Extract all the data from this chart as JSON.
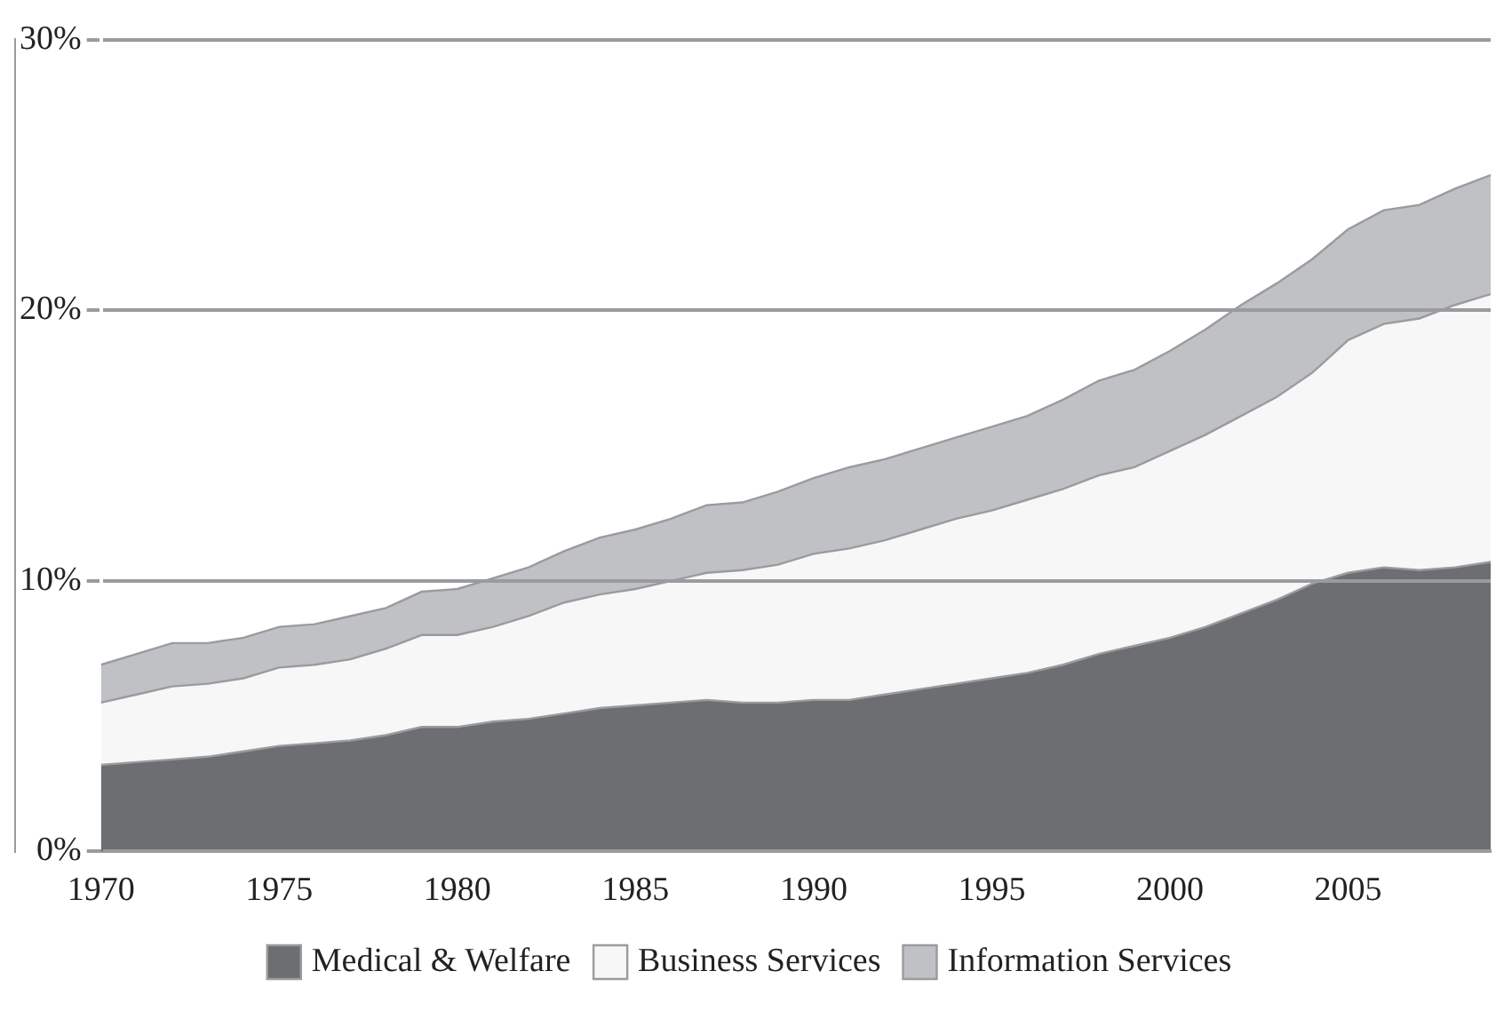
{
  "chart_data": {
    "type": "area",
    "stacked": true,
    "x": [
      1970,
      1971,
      1972,
      1973,
      1974,
      1975,
      1976,
      1977,
      1978,
      1979,
      1980,
      1981,
      1982,
      1983,
      1984,
      1985,
      1986,
      1987,
      1988,
      1989,
      1990,
      1991,
      1992,
      1993,
      1994,
      1995,
      1996,
      1997,
      1998,
      1999,
      2000,
      2001,
      2002,
      2003,
      2004,
      2005,
      2006,
      2007,
      2008,
      2009
    ],
    "series": [
      {
        "name": "Medical & Welfare",
        "color": "#6d6e71",
        "values": [
          3.2,
          3.3,
          3.4,
          3.5,
          3.7,
          3.9,
          4.0,
          4.1,
          4.3,
          4.6,
          4.6,
          4.8,
          4.9,
          5.1,
          5.3,
          5.4,
          5.5,
          5.6,
          5.5,
          5.5,
          5.6,
          5.6,
          5.8,
          6.0,
          6.2,
          6.4,
          6.6,
          6.9,
          7.3,
          7.6,
          7.9,
          8.3,
          8.8,
          9.3,
          9.9,
          10.3,
          10.5,
          10.4,
          10.5,
          10.7
        ]
      },
      {
        "name": "Business Services",
        "color": "#f7f7f7",
        "values": [
          2.3,
          2.5,
          2.7,
          2.7,
          2.7,
          2.9,
          2.9,
          3.0,
          3.2,
          3.4,
          3.4,
          3.5,
          3.8,
          4.1,
          4.2,
          4.3,
          4.5,
          4.7,
          4.9,
          5.1,
          5.4,
          5.6,
          5.7,
          5.9,
          6.1,
          6.2,
          6.4,
          6.5,
          6.6,
          6.6,
          6.9,
          7.1,
          7.3,
          7.5,
          7.8,
          8.6,
          9.0,
          9.3,
          9.7,
          9.9
        ]
      },
      {
        "name": "Information Services",
        "color": "#c0c1c4",
        "values": [
          1.4,
          1.5,
          1.6,
          1.5,
          1.5,
          1.5,
          1.5,
          1.6,
          1.5,
          1.6,
          1.7,
          1.8,
          1.8,
          1.9,
          2.1,
          2.2,
          2.3,
          2.5,
          2.5,
          2.7,
          2.8,
          3.0,
          3.0,
          3.0,
          3.0,
          3.1,
          3.1,
          3.3,
          3.5,
          3.6,
          3.7,
          3.9,
          4.1,
          4.2,
          4.2,
          4.1,
          4.2,
          4.2,
          4.3,
          4.4
        ]
      }
    ],
    "xlim": [
      1970,
      2009
    ],
    "xticks": [
      1970,
      1975,
      1980,
      1985,
      1990,
      1995,
      2000,
      2005
    ],
    "ylim": [
      0,
      30
    ],
    "yticks": [
      {
        "value": 0,
        "label": "0%"
      },
      {
        "value": 10,
        "label": "10%"
      },
      {
        "value": 20,
        "label": "20%"
      },
      {
        "value": 30,
        "label": "30%"
      }
    ],
    "grid": "y",
    "legend": "bottom"
  }
}
